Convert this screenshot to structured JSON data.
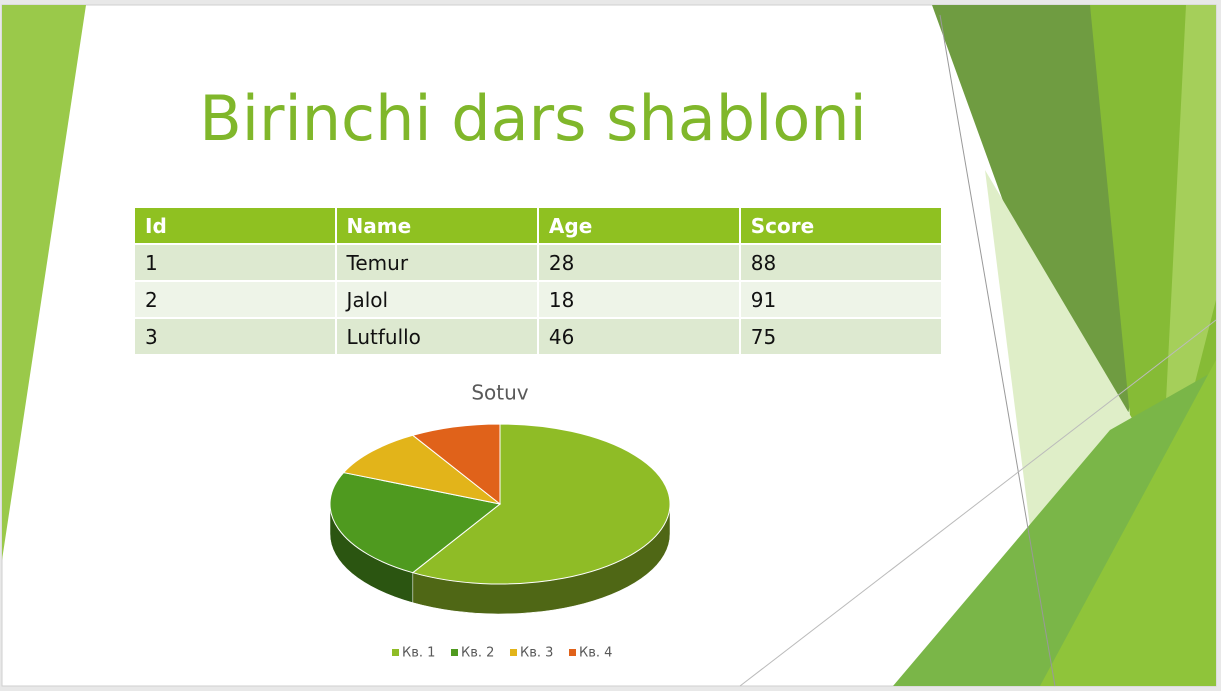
{
  "title": "Birinchi dars shabloni",
  "table": {
    "header": [
      "Id",
      "Name",
      "Age",
      "Score"
    ],
    "rows": [
      [
        1,
        "Temur",
        28,
        88
      ],
      [
        2,
        "Jalol",
        18,
        91
      ],
      [
        3,
        "Lutfullo",
        46,
        75
      ]
    ]
  },
  "chart_data": {
    "type": "pie",
    "title": "Sotuv",
    "categories": [
      "Кв. 1",
      "Кв. 2",
      "Кв. 3",
      "Кв. 4"
    ],
    "values": [
      8.2,
      3.2,
      1.4,
      1.2
    ],
    "colors": [
      "#8fbc26",
      "#4f9a1f",
      "#e2b41a",
      "#e0621a"
    ]
  }
}
